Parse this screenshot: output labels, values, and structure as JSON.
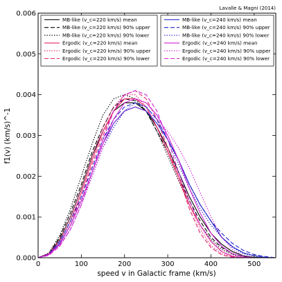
{
  "chart_data": {
    "type": "line",
    "title": "",
    "credit": "Lavalle & Magni (2014)",
    "xlabel": "speed v in Galactic frame (km/s)",
    "ylabel": "f1(v) (km/s)^-1",
    "xlim": [
      0,
      550
    ],
    "ylim": [
      0,
      0.006
    ],
    "x_ticks": [
      0,
      100,
      200,
      300,
      400,
      500
    ],
    "y_ticks": [
      0.0,
      0.001,
      0.002,
      0.003,
      0.004,
      0.005,
      0.006
    ],
    "y_tick_labels": [
      "0.000",
      "0.001",
      "0.002",
      "0.003",
      "0.004",
      "0.005",
      "0.006"
    ],
    "grid": false,
    "legend_placement": "top (two boxes: left and right)",
    "legend_left": [
      "MB-like (v_c=220 km/s) mean",
      "MB-like (v_c=220 km/s) 90% upper",
      "MB-like (v_c=220 km/s) 90% lower",
      "Ergodic (v_c=220 km/s) mean",
      "Ergodic (v_c=220 km/s) 90% upper",
      "Ergodic (v_c=220 km/s) 90% lower"
    ],
    "legend_right": [
      "MB-like (v_c=240 km/s) mean",
      "MB-like (v_c=240 km/s) 90% upper",
      "MB-like (v_c=240 km/s) 90% lower",
      "Ergodic (v_c=240 km/s) mean",
      "Ergodic (v_c=240 km/s) 90% upper",
      "Ergodic (v_c=240 km/s) 90% lower"
    ],
    "series": [
      {
        "name": "MB-like (v_c=220 km/s) mean",
        "color": "#000000",
        "dash": "solid",
        "x": [
          0,
          25,
          50,
          75,
          100,
          125,
          150,
          175,
          200,
          225,
          250,
          275,
          300,
          325,
          350,
          375,
          400,
          425,
          450,
          475,
          500,
          525
        ],
        "y": [
          0,
          0.0001,
          0.00045,
          0.001,
          0.0017,
          0.0025,
          0.0031,
          0.0036,
          0.0038,
          0.0038,
          0.0036,
          0.0032,
          0.0027,
          0.0021,
          0.0015,
          0.001,
          0.0006,
          0.00033,
          0.00015,
          5e-05,
          1e-05,
          0
        ]
      },
      {
        "name": "MB-like (v_c=220 km/s) 90% upper",
        "color": "#000000",
        "dash": "dashed",
        "x": [
          0,
          25,
          50,
          75,
          100,
          125,
          150,
          175,
          200,
          225,
          250,
          275,
          300,
          325,
          350,
          375,
          400,
          425,
          450,
          475,
          500,
          525
        ],
        "y": [
          0,
          0.0001,
          0.0005,
          0.0011,
          0.0018,
          0.0026,
          0.0032,
          0.0037,
          0.0039,
          0.00385,
          0.0036,
          0.0031,
          0.0026,
          0.002,
          0.0014,
          0.0009,
          0.0005,
          0.00025,
          0.0001,
          3e-05,
          0,
          0
        ]
      },
      {
        "name": "MB-like (v_c=220 km/s) 90% lower",
        "color": "#000000",
        "dash": "dotted",
        "x": [
          0,
          25,
          50,
          75,
          100,
          125,
          150,
          175,
          200,
          225,
          250,
          275,
          300,
          325,
          350,
          375,
          400,
          425,
          450,
          475,
          500,
          525
        ],
        "y": [
          0,
          0.00012,
          0.00055,
          0.0012,
          0.002,
          0.0028,
          0.0035,
          0.0039,
          0.004,
          0.0039,
          0.0036,
          0.0031,
          0.0025,
          0.0019,
          0.0013,
          0.0008,
          0.00045,
          0.0002,
          8e-05,
          2e-05,
          0,
          0
        ]
      },
      {
        "name": "Ergodic (v_c=220 km/s) mean",
        "color": "#e8206a",
        "dash": "solid",
        "x": [
          0,
          25,
          50,
          75,
          100,
          125,
          150,
          175,
          200,
          225,
          250,
          275,
          300,
          325,
          350,
          375,
          400,
          425,
          450,
          475,
          500
        ],
        "y": [
          0,
          0.0001,
          0.0004,
          0.0009,
          0.0016,
          0.0024,
          0.0031,
          0.0036,
          0.0039,
          0.0039,
          0.0037,
          0.0032,
          0.0026,
          0.002,
          0.0013,
          0.0008,
          0.0004,
          0.00015,
          4e-05,
          0,
          0
        ]
      },
      {
        "name": "Ergodic (v_c=220 km/s) 90% upper",
        "color": "#e8206a",
        "dash": "dotted",
        "x": [
          0,
          25,
          50,
          75,
          100,
          125,
          150,
          175,
          200,
          225,
          250,
          275,
          300,
          325,
          350,
          375,
          400,
          425,
          450,
          475,
          500
        ],
        "y": [
          0,
          0.0001,
          0.00045,
          0.001,
          0.0017,
          0.0025,
          0.0032,
          0.0037,
          0.004,
          0.004,
          0.0037,
          0.0032,
          0.0026,
          0.0019,
          0.0013,
          0.0007,
          0.0003,
          0.0001,
          2e-05,
          0,
          0
        ]
      },
      {
        "name": "Ergodic (v_c=220 km/s) 90% lower",
        "color": "#e8206a",
        "dash": "dashed",
        "x": [
          0,
          25,
          50,
          75,
          100,
          125,
          150,
          175,
          200,
          225,
          250,
          275,
          300,
          325,
          350,
          375,
          400,
          425,
          450,
          475,
          500
        ],
        "y": [
          0,
          8e-05,
          0.00035,
          0.0008,
          0.0015,
          0.0023,
          0.003,
          0.0036,
          0.004,
          0.0041,
          0.0039,
          0.0034,
          0.0027,
          0.002,
          0.0012,
          0.0006,
          0.00025,
          7e-05,
          1e-05,
          0,
          0
        ]
      },
      {
        "name": "MB-like (v_c=240 km/s) mean",
        "color": "#2020c8",
        "dash": "solid",
        "x": [
          0,
          25,
          50,
          75,
          100,
          125,
          150,
          175,
          200,
          225,
          250,
          275,
          300,
          325,
          350,
          375,
          400,
          425,
          450,
          475,
          500,
          525,
          550
        ],
        "y": [
          0,
          8e-05,
          0.00035,
          0.0008,
          0.0014,
          0.0021,
          0.0028,
          0.0033,
          0.0036,
          0.0037,
          0.0036,
          0.0033,
          0.0029,
          0.0024,
          0.0018,
          0.0013,
          0.0009,
          0.0005,
          0.00027,
          0.00012,
          5e-05,
          1e-05,
          0
        ]
      },
      {
        "name": "MB-like (v_c=240 km/s) 90% upper",
        "color": "#2020c8",
        "dash": "dashed",
        "x": [
          0,
          25,
          50,
          75,
          100,
          125,
          150,
          175,
          200,
          225,
          250,
          275,
          300,
          325,
          350,
          375,
          400,
          425,
          450,
          475,
          500,
          525,
          550
        ],
        "y": [
          0,
          9e-05,
          0.0004,
          0.0009,
          0.0015,
          0.0022,
          0.0029,
          0.0034,
          0.0037,
          0.0038,
          0.0037,
          0.0034,
          0.0029,
          0.0024,
          0.0018,
          0.0013,
          0.0009,
          0.0006,
          0.00035,
          0.00018,
          8e-05,
          3e-05,
          0
        ]
      },
      {
        "name": "MB-like (v_c=240 km/s) 90% lower",
        "color": "#2020c8",
        "dash": "dotted",
        "x": [
          0,
          25,
          50,
          75,
          100,
          125,
          150,
          175,
          200,
          225,
          250,
          275,
          300,
          325,
          350,
          375,
          400,
          425,
          450,
          475,
          500,
          525,
          550
        ],
        "y": [
          0,
          7e-05,
          0.0003,
          0.0007,
          0.0013,
          0.002,
          0.0027,
          0.0032,
          0.0036,
          0.0038,
          0.0037,
          0.0034,
          0.0029,
          0.0023,
          0.0017,
          0.0012,
          0.0008,
          0.0005,
          0.00025,
          0.0001,
          4e-05,
          0,
          0
        ]
      },
      {
        "name": "Ergodic (v_c=240 km/s) mean",
        "color": "#d020d0",
        "dash": "solid",
        "x": [
          0,
          25,
          50,
          75,
          100,
          125,
          150,
          175,
          200,
          225,
          250,
          275,
          300,
          325,
          350,
          375,
          400,
          425,
          450,
          475,
          500,
          525
        ],
        "y": [
          0,
          8e-05,
          0.00033,
          0.0008,
          0.0014,
          0.0021,
          0.0028,
          0.0034,
          0.0038,
          0.0039,
          0.0038,
          0.0035,
          0.003,
          0.0024,
          0.0017,
          0.0011,
          0.0006,
          0.00028,
          0.0001,
          2e-05,
          0,
          0
        ]
      },
      {
        "name": "Ergodic (v_c=240 km/s) 90% upper",
        "color": "#d020d0",
        "dash": "dotted",
        "x": [
          0,
          25,
          50,
          75,
          100,
          125,
          150,
          175,
          200,
          225,
          250,
          275,
          300,
          325,
          350,
          375,
          400,
          425,
          450,
          475,
          500,
          525
        ],
        "y": [
          0,
          7e-05,
          0.0003,
          0.0007,
          0.0013,
          0.002,
          0.0027,
          0.0033,
          0.0036,
          0.0037,
          0.0036,
          0.0034,
          0.0031,
          0.0027,
          0.0022,
          0.0016,
          0.001,
          0.0005,
          0.0002,
          5e-05,
          0,
          0
        ]
      },
      {
        "name": "Ergodic (v_c=240 km/s) 90% lower",
        "color": "#d020d0",
        "dash": "dashed",
        "x": [
          0,
          25,
          50,
          75,
          100,
          125,
          150,
          175,
          200,
          225,
          250,
          275,
          300,
          325,
          350,
          375,
          400,
          425,
          450,
          475,
          500,
          525
        ],
        "y": [
          0,
          6e-05,
          0.00028,
          0.0007,
          0.0013,
          0.0021,
          0.0029,
          0.0036,
          0.004,
          0.0041,
          0.004,
          0.0036,
          0.0029,
          0.0021,
          0.0014,
          0.0008,
          0.0004,
          0.00015,
          3e-05,
          0,
          0,
          0
        ]
      }
    ]
  }
}
